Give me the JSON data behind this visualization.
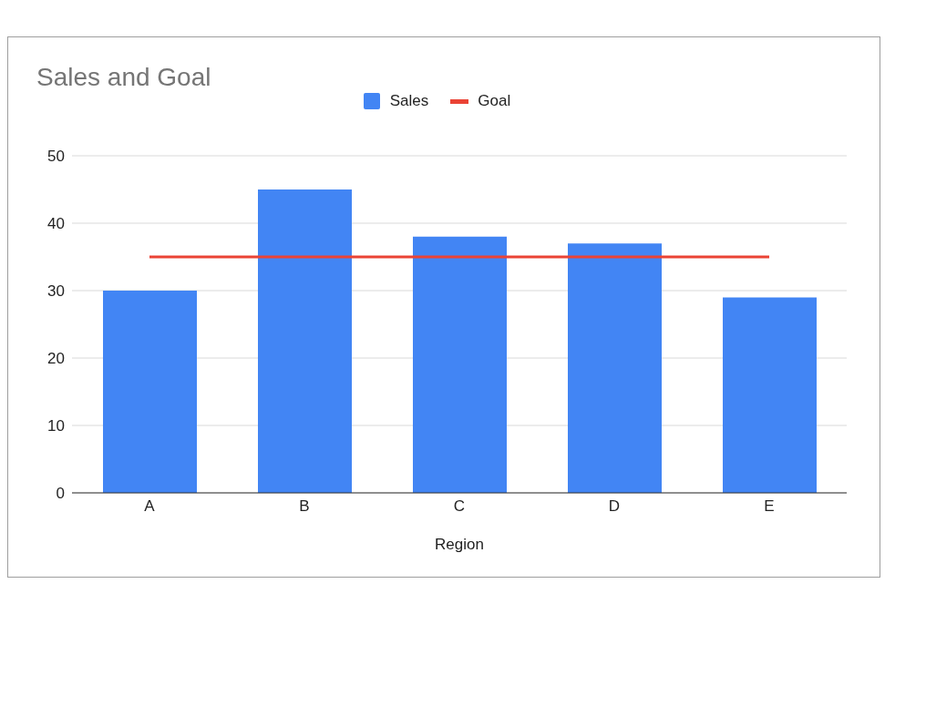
{
  "chart_data": {
    "type": "bar",
    "title": "Sales and Goal",
    "xlabel": "Region",
    "categories": [
      "A",
      "B",
      "C",
      "D",
      "E"
    ],
    "series": [
      {
        "name": "Sales",
        "color": "#4285f4",
        "values": [
          30,
          45,
          38,
          37,
          29
        ]
      },
      {
        "name": "Goal",
        "type": "line",
        "color": "#ea4335",
        "values": [
          35,
          35,
          35,
          35,
          35
        ]
      }
    ],
    "ylim": [
      0,
      50
    ],
    "yticks": [
      0,
      10,
      20,
      30,
      40,
      50
    ],
    "grid": "y",
    "legend": "top",
    "marker": "none",
    "line_style": "solid"
  }
}
